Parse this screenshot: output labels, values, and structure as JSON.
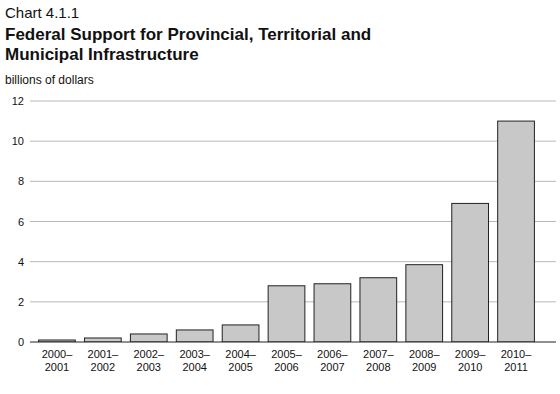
{
  "chart_data": {
    "type": "bar",
    "annotations": [
      "Chart 4.1.1"
    ],
    "title": "Federal Support for Provincial, Territorial and Municipal Infrastructure",
    "ylabel": "billions of dollars",
    "categories": [
      "2000–2001",
      "2001–2002",
      "2002–2003",
      "2003–2004",
      "2004–2005",
      "2005–2006",
      "2006–2007",
      "2007–2008",
      "2008–2009",
      "2009–2010",
      "2010–2011"
    ],
    "values": [
      0.1,
      0.2,
      0.4,
      0.6,
      0.85,
      2.8,
      2.9,
      3.2,
      3.85,
      6.9,
      11.0
    ],
    "color": "#c8c8c8",
    "ylim": [
      0,
      12
    ],
    "yticks": [
      0,
      2,
      4,
      6,
      8,
      10,
      12
    ],
    "grid": true
  }
}
